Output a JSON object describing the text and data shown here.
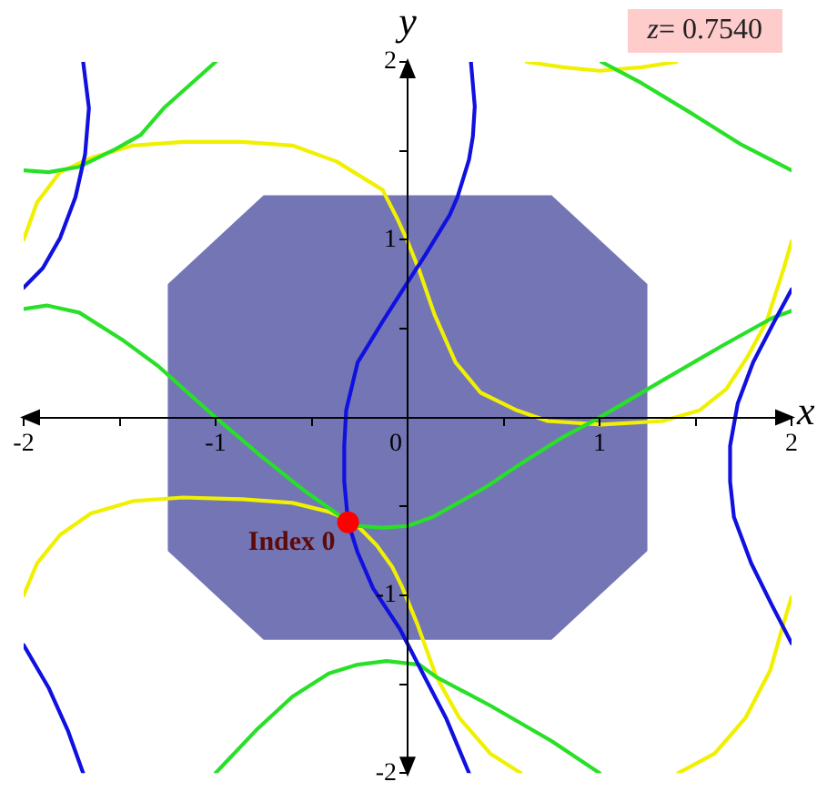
{
  "chart_data": {
    "type": "line",
    "xlabel": "x",
    "ylabel": "y",
    "annotations": [
      "z= 0.7540",
      {
        "text": "Index 0",
        "x": -0.31,
        "y": -0.59
      }
    ],
    "xlim": [
      -2,
      2
    ],
    "ylim": [
      -2,
      2
    ],
    "xticks": [
      -2,
      {
        "value": -1.5,
        "label": null
      },
      -1,
      {
        "value": -0.5,
        "label": null
      },
      0,
      {
        "value": 0.5,
        "label": null
      },
      1,
      {
        "value": 1.5,
        "label": null
      },
      2
    ],
    "yticks": [
      -2,
      {
        "value": -1.5,
        "label": null
      },
      -1,
      {
        "value": -0.5,
        "label": null
      },
      {
        "value": 0.5,
        "label": null
      },
      1,
      {
        "value": 1.5,
        "label": null
      },
      2
    ],
    "grid": false,
    "legend": false,
    "marker": "none",
    "series": [
      {
        "color": "#1010e0",
        "x": [
          -1.69,
          -1.66,
          -1.68,
          -1.73,
          -1.81,
          -1.9,
          -2.0
        ],
        "values": [
          2.0,
          1.74,
          1.48,
          1.24,
          1.01,
          0.84,
          0.73
        ]
      },
      {
        "color": "#1010e0",
        "x": [
          -2.0,
          -1.87,
          -1.77,
          -1.69
        ],
        "values": [
          -1.28,
          -1.52,
          -1.76,
          -2.0
        ]
      },
      {
        "color": "#1010e0",
        "x": [
          0.33,
          0.35,
          0.34,
          0.32,
          0.26,
          0.22,
          0.09,
          0.0,
          -0.13,
          -0.26,
          -0.32,
          -0.33,
          -0.33,
          -0.31,
          -0.26,
          -0.18,
          -0.04,
          0.07,
          0.2,
          0.32
        ],
        "values": [
          2.0,
          1.75,
          1.58,
          1.45,
          1.24,
          1.14,
          0.91,
          0.76,
          0.54,
          0.31,
          0.04,
          -0.16,
          -0.36,
          -0.59,
          -0.76,
          -0.96,
          -1.19,
          -1.42,
          -1.69,
          -2.0
        ]
      },
      {
        "color": "#1010e0",
        "x": [
          2.0,
          1.91,
          1.8,
          1.72,
          1.68,
          1.68,
          1.7,
          1.79,
          1.9,
          2.0
        ],
        "values": [
          0.72,
          0.54,
          0.31,
          0.08,
          -0.16,
          -0.36,
          -0.56,
          -0.82,
          -1.06,
          -1.27
        ]
      },
      {
        "color": "#28e028",
        "x": [
          -2.0,
          -1.87,
          -1.71,
          -1.52,
          -1.39,
          -1.27,
          -1.0
        ],
        "values": [
          1.39,
          1.38,
          1.41,
          1.51,
          1.59,
          1.74,
          2.0
        ]
      },
      {
        "color": "#28e028",
        "x": [
          1.01,
          1.22,
          1.48,
          1.73,
          2.0
        ],
        "values": [
          2.0,
          1.88,
          1.71,
          1.54,
          1.39
        ]
      },
      {
        "color": "#28e028",
        "x": [
          -2.0,
          -1.88,
          -1.71,
          -1.49,
          -1.3,
          -1.0,
          -0.76,
          -0.54,
          -0.37,
          -0.26,
          -0.13,
          0.0,
          0.13,
          0.28,
          0.41,
          0.59,
          0.81,
          1.0,
          1.33,
          1.65,
          1.9,
          2.0
        ],
        "values": [
          0.61,
          0.63,
          0.59,
          0.44,
          0.29,
          0.0,
          -0.22,
          -0.41,
          -0.54,
          -0.61,
          -0.62,
          -0.61,
          -0.56,
          -0.47,
          -0.39,
          -0.26,
          -0.11,
          0.0,
          0.21,
          0.41,
          0.56,
          0.6
        ]
      },
      {
        "color": "#28e028",
        "x": [
          -1.0,
          -0.79,
          -0.6,
          -0.41,
          -0.26,
          -0.11,
          0.06,
          0.15,
          0.43,
          0.75,
          1.0
        ],
        "values": [
          -2.0,
          -1.76,
          -1.57,
          -1.44,
          -1.39,
          -1.37,
          -1.39,
          -1.46,
          -1.62,
          -1.82,
          -2.0
        ]
      },
      {
        "color": "#f0f000",
        "x": [
          0.62,
          0.81,
          1.0,
          1.22,
          1.4
        ],
        "values": [
          2.0,
          1.97,
          1.95,
          1.97,
          2.0
        ]
      },
      {
        "color": "#f0f000",
        "x": [
          -2.0,
          -1.93,
          -1.81,
          -1.65,
          -1.43,
          -1.17,
          -0.86,
          -0.6,
          -0.37,
          -0.13,
          -0.05,
          0.0,
          0.06,
          0.14,
          0.25,
          0.38,
          0.57,
          0.73,
          1.01,
          1.33,
          1.52,
          1.66,
          1.77,
          1.87,
          1.93,
          1.96,
          2.0
        ],
        "values": [
          1.0,
          1.21,
          1.38,
          1.46,
          1.53,
          1.55,
          1.55,
          1.53,
          1.44,
          1.28,
          1.11,
          0.99,
          0.83,
          0.58,
          0.31,
          0.14,
          0.04,
          -0.02,
          -0.04,
          -0.02,
          0.04,
          0.16,
          0.34,
          0.54,
          0.74,
          0.84,
          0.99
        ]
      },
      {
        "color": "#f0f000",
        "x": [
          -2.0,
          -1.93,
          -1.81,
          -1.65,
          -1.43,
          -1.17,
          -0.86,
          -0.6,
          -0.41,
          -0.32,
          -0.26,
          -0.16,
          -0.08,
          -0.03,
          0.05,
          0.15,
          0.27,
          0.43,
          0.59
        ],
        "values": [
          -1.0,
          -0.82,
          -0.66,
          -0.54,
          -0.47,
          -0.45,
          -0.46,
          -0.48,
          -0.53,
          -0.57,
          -0.61,
          -0.72,
          -0.84,
          -0.95,
          -1.16,
          -1.46,
          -1.69,
          -1.89,
          -2.0
        ]
      },
      {
        "color": "#f0f000",
        "x": [
          1.41,
          1.6,
          1.76,
          1.89,
          1.95,
          2.0
        ],
        "values": [
          -2.0,
          -1.89,
          -1.69,
          -1.42,
          -1.19,
          -1.01
        ]
      },
      {
        "type": "area",
        "color": "#7375b5",
        "x": [
          -1.25,
          -0.75,
          0.75,
          1.25
        ],
        "values": [
          0.75,
          1.25,
          1.25,
          0.75
        ]
      },
      {
        "type": "area",
        "color": "#7375b5",
        "x": [
          -1.25,
          -0.75,
          0.75,
          1.25
        ],
        "values": [
          -0.75,
          -1.25,
          -1.25,
          -0.75
        ]
      },
      {
        "type": "scatter",
        "color": "#ff0000",
        "marker": "circle",
        "x": [
          -0.31
        ],
        "values": [
          -0.59
        ]
      }
    ]
  }
}
